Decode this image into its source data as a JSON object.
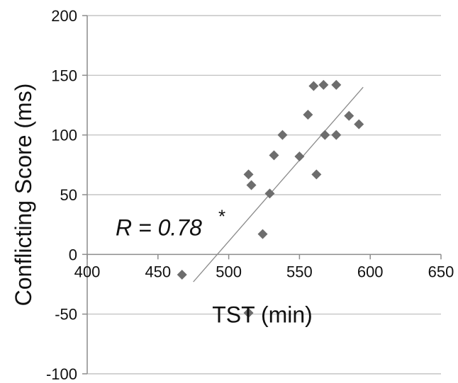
{
  "chart_data": {
    "type": "scatter",
    "title": "",
    "xlabel": "TST (min)",
    "ylabel": "Conflicting Score (ms)",
    "xlim": [
      400,
      650
    ],
    "ylim": [
      -100,
      200
    ],
    "x_ticks": [
      400,
      450,
      500,
      550,
      600,
      650
    ],
    "y_ticks": [
      -100,
      -50,
      0,
      50,
      100,
      150,
      200
    ],
    "x_tick_labels": [
      "400",
      "450",
      "500",
      "550",
      "600",
      "650"
    ],
    "y_tick_labels": [
      "-100",
      "-50",
      "0",
      "50",
      "100",
      "150",
      "200"
    ],
    "grid": "horizontal",
    "marker_color": "#6d6d6d",
    "line_color": "#8a8a8a",
    "grid_color": "#b9b9b9",
    "points": [
      [
        467,
        -17
      ],
      [
        514,
        67
      ],
      [
        516,
        58
      ],
      [
        514,
        -49
      ],
      [
        524,
        17
      ],
      [
        529,
        51
      ],
      [
        532,
        83
      ],
      [
        538,
        100
      ],
      [
        550,
        82
      ],
      [
        556,
        117
      ],
      [
        560,
        141
      ],
      [
        562,
        67
      ],
      [
        567,
        142
      ],
      [
        568,
        100
      ],
      [
        576,
        142
      ],
      [
        576,
        100
      ],
      [
        585,
        116
      ],
      [
        592,
        109
      ]
    ],
    "fit_line": {
      "x": [
        475,
        595
      ],
      "y": [
        -23,
        140
      ]
    },
    "annotation": {
      "text": "R = 0.78",
      "superscript": "*"
    }
  }
}
